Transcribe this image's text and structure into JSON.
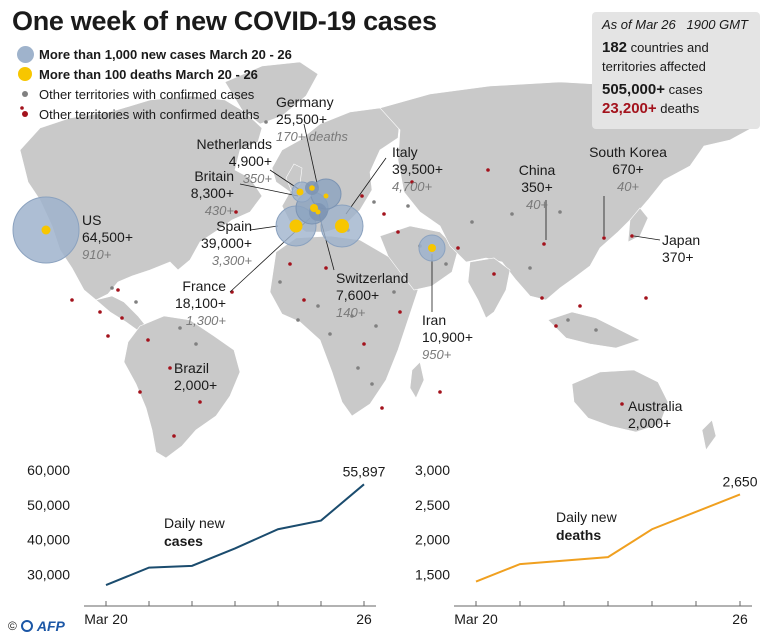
{
  "title": "One week of new COVID-19 cases",
  "legend": [
    {
      "symbol": "blue-circle",
      "label": "More than 1,000 new cases March 20 - 26"
    },
    {
      "symbol": "yellow-circle",
      "label": "More than 100 deaths March 20 - 26"
    },
    {
      "symbol": "grey-dot",
      "label": "Other territories with confirmed cases"
    },
    {
      "symbol": "red-dot",
      "label": "Other territories with confirmed deaths"
    }
  ],
  "stats": {
    "as_of": "As of Mar 26",
    "time": "1900 GMT",
    "countries_num": "182",
    "countries_text": "countries and",
    "countries_text2": "territories affected",
    "cases_num": "505,000+",
    "cases_text": "cases",
    "deaths_num": "23,200+",
    "deaths_text": "deaths"
  },
  "countries": {
    "us": {
      "name": "US",
      "cases": "64,500+",
      "deaths": "910+"
    },
    "germany": {
      "name": "Germany",
      "cases": "25,500+",
      "deaths": "170+ deaths"
    },
    "netherlands": {
      "name": "Netherlands",
      "cases": "4,900+",
      "deaths": "350+"
    },
    "britain": {
      "name": "Britain",
      "cases": "8,300+",
      "deaths": "430+"
    },
    "spain": {
      "name": "Spain",
      "cases": "39,000+",
      "deaths": "3,300+"
    },
    "france": {
      "name": "France",
      "cases": "18,100+",
      "deaths": "1,300+"
    },
    "italy": {
      "name": "Italy",
      "cases": "39,500+",
      "deaths": "4,700+"
    },
    "switzerland": {
      "name": "Switzerland",
      "cases": "7,600+",
      "deaths": "140+"
    },
    "iran": {
      "name": "Iran",
      "cases": "10,900+",
      "deaths": "950+"
    },
    "china": {
      "name": "China",
      "cases": "350+",
      "deaths": "40+"
    },
    "south_korea": {
      "name": "South Korea",
      "cases": "670+",
      "deaths": "40+"
    },
    "japan": {
      "name": "Japan",
      "cases": "370+"
    },
    "brazil": {
      "name": "Brazil",
      "cases": "2,000+"
    },
    "australia": {
      "name": "Australia",
      "cases": "2,000+"
    }
  },
  "colors": {
    "land": "#c9c9c9",
    "bubble": "#9fb3cc",
    "death_dot": "#f7c600",
    "case_dot": "#808080",
    "death_red": "#a3121c",
    "cases_line": "#1b4c6e",
    "deaths_line": "#f0a020"
  },
  "chart_data": [
    {
      "type": "line",
      "name": "cases",
      "annotation": "Daily new",
      "annotation_bold": "cases",
      "x_start_label": "Mar 20",
      "x_end_label": "26",
      "x": [
        "Mar 20",
        "Mar 21",
        "Mar 22",
        "Mar 23",
        "Mar 24",
        "Mar 25",
        "Mar 26"
      ],
      "values": [
        27000,
        32000,
        32500,
        37500,
        43000,
        45500,
        55897
      ],
      "end_value_label": "55,897",
      "y_ticks": [
        "30,000",
        "40,000",
        "50,000",
        "60,000"
      ],
      "y_tick_values": [
        30000,
        40000,
        50000,
        60000
      ],
      "ylim": [
        25000,
        60000
      ]
    },
    {
      "type": "line",
      "name": "deaths",
      "annotation": "Daily new",
      "annotation_bold": "deaths",
      "x_start_label": "Mar 20",
      "x_end_label": "26",
      "x": [
        "Mar 20",
        "Mar 21",
        "Mar 22",
        "Mar 23",
        "Mar 24",
        "Mar 25",
        "Mar 26"
      ],
      "values": [
        1400,
        1650,
        1700,
        1750,
        2150,
        2400,
        2650
      ],
      "end_value_label": "2,650",
      "y_ticks": [
        "1,500",
        "2,000",
        "2,500",
        "3,000"
      ],
      "y_tick_values": [
        1500,
        2000,
        2500,
        3000
      ],
      "ylim": [
        1250,
        3000
      ]
    }
  ],
  "footer": {
    "copyright": "©",
    "brand": "AFP"
  }
}
